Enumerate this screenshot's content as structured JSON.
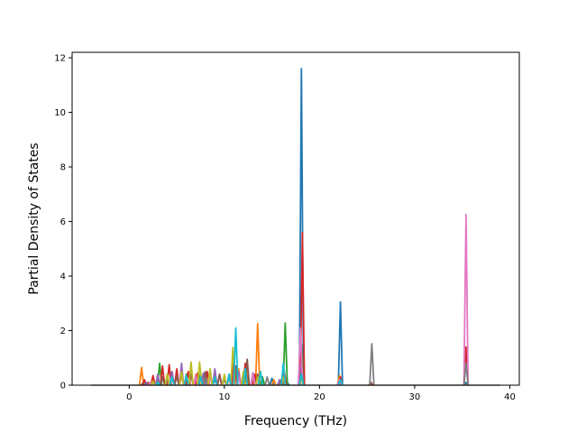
{
  "chart_data": {
    "type": "line",
    "title": "",
    "xlabel": "Frequency (THz)",
    "ylabel": "Partial Density of States",
    "xlim": [
      -6.0,
      41.0
    ],
    "ylim": [
      0,
      12.2
    ],
    "xticks": [
      0,
      10,
      20,
      30,
      40
    ],
    "xtick_labels": [
      "0",
      "10",
      "20",
      "30",
      "40"
    ],
    "yticks": [
      0,
      2,
      4,
      6,
      8,
      10,
      12
    ],
    "ytick_labels": [
      "0",
      "2",
      "4",
      "6",
      "8",
      "10",
      "12"
    ],
    "grid": false,
    "legend": "none",
    "baseline_range": [
      -4.0,
      39.0
    ],
    "series_colors": [
      "#1f77b4",
      "#ff7f0e",
      "#2ca02c",
      "#d62728",
      "#9467bd",
      "#8c564b",
      "#e377c2",
      "#7f7f7f",
      "#bcbd22",
      "#17becf"
    ],
    "series": [
      {
        "color": "#1f77b4",
        "points": [
          [
            1.4,
            0.05
          ],
          [
            3.0,
            0.15
          ],
          [
            4.5,
            0.28
          ],
          [
            6.0,
            0.3
          ],
          [
            7.5,
            0.25
          ],
          [
            9.0,
            0.2
          ],
          [
            10.5,
            0.3
          ],
          [
            12.0,
            0.35
          ],
          [
            14.0,
            0.3
          ],
          [
            15.0,
            0.25
          ],
          [
            16.2,
            0.4
          ],
          [
            16.6,
            0.1
          ],
          [
            18.1,
            11.6
          ],
          [
            22.2,
            3.05
          ],
          [
            25.4,
            0.1
          ],
          [
            35.4,
            0.1
          ]
        ]
      },
      {
        "color": "#ff7f0e",
        "points": [
          [
            1.3,
            0.65
          ],
          [
            2.5,
            0.3
          ],
          [
            4.0,
            0.4
          ],
          [
            5.5,
            0.35
          ],
          [
            7.0,
            0.4
          ],
          [
            9.0,
            0.3
          ],
          [
            10.8,
            0.5
          ],
          [
            11.5,
            0.6
          ],
          [
            12.3,
            0.6
          ],
          [
            13.5,
            2.25
          ],
          [
            15.2,
            0.2
          ],
          [
            18.1,
            0.45
          ],
          [
            22.1,
            0.35
          ],
          [
            25.4,
            0.05
          ]
        ]
      },
      {
        "color": "#2ca02c",
        "points": [
          [
            1.5,
            0.1
          ],
          [
            3.2,
            0.8
          ],
          [
            4.5,
            0.5
          ],
          [
            6.0,
            0.4
          ],
          [
            7.5,
            0.45
          ],
          [
            9.0,
            0.5
          ],
          [
            10.5,
            0.4
          ],
          [
            12.0,
            0.45
          ],
          [
            13.0,
            0.3
          ],
          [
            14.0,
            0.3
          ],
          [
            16.4,
            2.28
          ],
          [
            18.1,
            1.5
          ],
          [
            22.2,
            0.2
          ]
        ]
      },
      {
        "color": "#d62728",
        "points": [
          [
            1.6,
            0.2
          ],
          [
            2.5,
            0.35
          ],
          [
            3.5,
            0.7
          ],
          [
            4.2,
            0.75
          ],
          [
            5.0,
            0.6
          ],
          [
            6.2,
            0.5
          ],
          [
            7.2,
            0.45
          ],
          [
            8.2,
            0.5
          ],
          [
            9.5,
            0.4
          ],
          [
            11.0,
            1.1
          ],
          [
            12.2,
            0.8
          ],
          [
            13.2,
            0.4
          ],
          [
            16.3,
            0.5
          ],
          [
            18.2,
            5.6
          ],
          [
            22.2,
            0.3
          ],
          [
            35.4,
            1.4
          ]
        ]
      },
      {
        "color": "#9467bd",
        "points": [
          [
            1.8,
            0.1
          ],
          [
            3.0,
            0.4
          ],
          [
            4.5,
            0.5
          ],
          [
            5.5,
            0.8
          ],
          [
            6.5,
            0.6
          ],
          [
            7.8,
            0.45
          ],
          [
            9.0,
            0.6
          ],
          [
            10.5,
            0.4
          ],
          [
            11.5,
            0.5
          ],
          [
            13.0,
            0.45
          ],
          [
            15.8,
            0.2
          ],
          [
            18.1,
            0.8
          ],
          [
            22.2,
            0.15
          ]
        ]
      },
      {
        "color": "#8c564b",
        "points": [
          [
            2.0,
            0.1
          ],
          [
            3.5,
            0.3
          ],
          [
            5.0,
            0.35
          ],
          [
            6.5,
            0.4
          ],
          [
            8.0,
            0.5
          ],
          [
            9.5,
            0.4
          ],
          [
            11.2,
            0.7
          ],
          [
            12.4,
            0.95
          ],
          [
            13.5,
            0.4
          ],
          [
            16.0,
            0.2
          ],
          [
            18.1,
            0.5
          ],
          [
            22.2,
            0.1
          ],
          [
            25.4,
            0.1
          ]
        ]
      },
      {
        "color": "#e377c2",
        "points": [
          [
            2.2,
            0.1
          ],
          [
            4.0,
            0.3
          ],
          [
            5.5,
            0.4
          ],
          [
            7.0,
            0.35
          ],
          [
            8.5,
            0.3
          ],
          [
            10.0,
            0.2
          ],
          [
            11.5,
            0.3
          ],
          [
            13.0,
            0.4
          ],
          [
            16.2,
            0.7
          ],
          [
            18.0,
            2.1
          ],
          [
            22.1,
            0.2
          ],
          [
            35.4,
            6.25
          ]
        ]
      },
      {
        "color": "#7f7f7f",
        "points": [
          [
            2.5,
            0.1
          ],
          [
            4.0,
            0.2
          ],
          [
            6.0,
            0.3
          ],
          [
            8.0,
            0.25
          ],
          [
            10.0,
            0.2
          ],
          [
            12.0,
            0.3
          ],
          [
            14.5,
            0.3
          ],
          [
            16.1,
            0.2
          ],
          [
            18.1,
            0.3
          ],
          [
            22.2,
            0.2
          ],
          [
            25.5,
            1.52
          ],
          [
            35.4,
            0.8
          ]
        ]
      },
      {
        "color": "#bcbd22",
        "points": [
          [
            2.5,
            0.15
          ],
          [
            4.0,
            0.4
          ],
          [
            5.5,
            0.5
          ],
          [
            6.5,
            0.85
          ],
          [
            7.4,
            0.85
          ],
          [
            8.5,
            0.6
          ],
          [
            10.0,
            0.4
          ],
          [
            10.9,
            1.38
          ],
          [
            12.0,
            0.5
          ],
          [
            13.5,
            0.3
          ],
          [
            16.2,
            0.3
          ],
          [
            18.1,
            0.2
          ]
        ]
      },
      {
        "color": "#17becf",
        "points": [
          [
            3.0,
            0.1
          ],
          [
            4.5,
            0.3
          ],
          [
            6.0,
            0.35
          ],
          [
            7.5,
            0.3
          ],
          [
            9.0,
            0.3
          ],
          [
            10.5,
            0.4
          ],
          [
            11.2,
            2.1
          ],
          [
            12.2,
            0.6
          ],
          [
            13.8,
            0.5
          ],
          [
            16.2,
            0.8
          ],
          [
            18.1,
            0.4
          ],
          [
            22.2,
            0.2
          ]
        ]
      }
    ]
  }
}
